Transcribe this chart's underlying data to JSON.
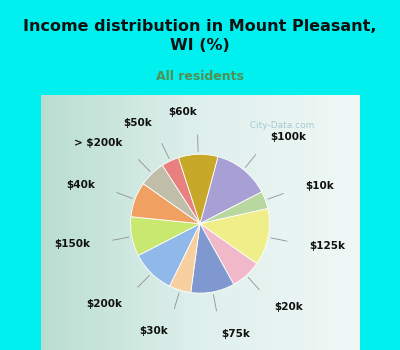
{
  "title": "Income distribution in Mount Pleasant,\nWI (%)",
  "subtitle": "All residents",
  "labels": [
    "$100k",
    "$10k",
    "$125k",
    "$20k",
    "$75k",
    "$30k",
    "$200k",
    "$150k",
    "$40k",
    "> $200k",
    "$50k",
    "$60k"
  ],
  "values": [
    13,
    4,
    13,
    7,
    10,
    5,
    10,
    9,
    8,
    6,
    4,
    9
  ],
  "colors": [
    "#a89fd4",
    "#b8d8a0",
    "#f0ee88",
    "#f0b8c8",
    "#8098d0",
    "#f8d0a0",
    "#90b8e8",
    "#c8e870",
    "#f0a060",
    "#c0bea8",
    "#e88080",
    "#c8a828"
  ],
  "cyan_bg": "#00f0f0",
  "chart_bg_left": "#c8e8d8",
  "chart_bg_right": "#e8f4f0",
  "title_color": "#111111",
  "subtitle_color": "#509050",
  "watermark": "City-Data.com",
  "startangle": 75,
  "label_fontsize": 7.5,
  "label_color": "#111111"
}
